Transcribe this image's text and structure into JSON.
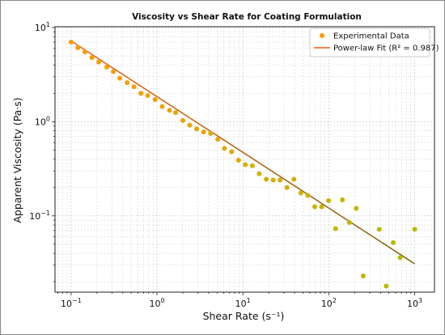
{
  "chart_data": {
    "type": "scatter",
    "title": "Viscosity vs Shear Rate for Coating Formulation",
    "xlabel": "Shear Rate (s⁻¹)",
    "ylabel": "Apparent Viscosity (Pa·s)",
    "xscale": "log",
    "yscale": "log",
    "xlim": [
      0.065,
      1700
    ],
    "ylim": [
      0.0155,
      10.2
    ],
    "grid": true,
    "grid_minor": true,
    "legend_position": "top-right",
    "x_ticks": [
      {
        "value": 0.1,
        "base": "10",
        "exp": "−1"
      },
      {
        "value": 1,
        "base": "10",
        "exp": "0"
      },
      {
        "value": 10,
        "base": "10",
        "exp": "1"
      },
      {
        "value": 100,
        "base": "10",
        "exp": "2"
      },
      {
        "value": 1000,
        "base": "10",
        "exp": "3"
      }
    ],
    "y_ticks": [
      {
        "value": 0.1,
        "base": "10",
        "exp": "−1"
      },
      {
        "value": 1,
        "base": "10",
        "exp": "0"
      },
      {
        "value": 10,
        "base": "10",
        "exp": "1"
      }
    ],
    "series": [
      {
        "name": "Experimental Data",
        "kind": "scatter",
        "points": [
          [
            0.1,
            7.0
          ],
          [
            0.12,
            6.1
          ],
          [
            0.145,
            5.5
          ],
          [
            0.175,
            4.8
          ],
          [
            0.21,
            4.3
          ],
          [
            0.26,
            3.8
          ],
          [
            0.31,
            3.4
          ],
          [
            0.37,
            2.9
          ],
          [
            0.45,
            2.6
          ],
          [
            0.54,
            2.35
          ],
          [
            0.65,
            2.0
          ],
          [
            0.78,
            1.9
          ],
          [
            0.95,
            1.72
          ],
          [
            1.15,
            1.45
          ],
          [
            1.4,
            1.32
          ],
          [
            1.65,
            1.25
          ],
          [
            2.0,
            1.03
          ],
          [
            2.4,
            0.92
          ],
          [
            2.9,
            0.84
          ],
          [
            3.5,
            0.78
          ],
          [
            4.2,
            0.75
          ],
          [
            5.1,
            0.65
          ],
          [
            6.1,
            0.52
          ],
          [
            7.4,
            0.48
          ],
          [
            8.9,
            0.39
          ],
          [
            10.7,
            0.35
          ],
          [
            12.9,
            0.34
          ],
          [
            15.5,
            0.28
          ],
          [
            18.7,
            0.245
          ],
          [
            22.5,
            0.24
          ],
          [
            27.1,
            0.24
          ],
          [
            32.6,
            0.2
          ],
          [
            39.3,
            0.245
          ],
          [
            47.3,
            0.175
          ],
          [
            57,
            0.165
          ],
          [
            68.6,
            0.125
          ],
          [
            82.6,
            0.125
          ],
          [
            99.5,
            0.145
          ],
          [
            120,
            0.073
          ],
          [
            144,
            0.148
          ],
          [
            174,
            0.085
          ],
          [
            209,
            0.12
          ],
          [
            252,
            0.023
          ],
          [
            387,
            0.072
          ],
          [
            466,
            0.018
          ],
          [
            562,
            0.052
          ],
          [
            677,
            0.036
          ],
          [
            1000,
            0.072
          ]
        ]
      },
      {
        "name": "Power-law Fit (R² = 0.987)",
        "kind": "line",
        "points": [
          [
            0.1,
            7.2
          ],
          [
            1000,
            0.031
          ]
        ]
      }
    ]
  },
  "colors": {
    "marker_start": "#ff9a00",
    "marker_end": "#b5bc00",
    "fit_line_start": "#f25b10",
    "fit_line_end": "#7a6a10",
    "grid": "#cfcfcf",
    "axes": "#222222"
  }
}
